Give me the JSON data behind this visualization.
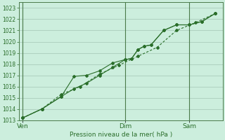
{
  "title": "Pression niveau de la mer( hPa )",
  "bg_color": "#cceedd",
  "grid_color": "#aaccbb",
  "line_color": "#2a6e2a",
  "ylim": [
    1013,
    1023.5
  ],
  "yticks": [
    1013,
    1014,
    1015,
    1016,
    1017,
    1018,
    1019,
    1020,
    1021,
    1022,
    1023
  ],
  "xtick_labels": [
    "Ven",
    "Dim",
    "Sam"
  ],
  "xtick_positions": [
    0.0,
    0.533,
    0.867
  ],
  "vline_positions": [
    0.0,
    0.533,
    0.867
  ],
  "series1_x": [
    0.0,
    0.1,
    0.2,
    0.267,
    0.333,
    0.4,
    0.467,
    0.533,
    0.567,
    0.6,
    0.633,
    0.667,
    0.733,
    0.8,
    0.867,
    0.933,
    1.0
  ],
  "series1_y": [
    1013.2,
    1014.0,
    1015.1,
    1016.9,
    1017.0,
    1017.4,
    1018.1,
    1018.4,
    1018.5,
    1019.3,
    1019.6,
    1019.7,
    1021.0,
    1021.5,
    1021.5,
    1021.8,
    1022.5
  ],
  "series2_x": [
    0.0,
    0.1,
    0.2,
    0.267,
    0.333,
    0.4,
    0.467,
    0.533,
    0.567,
    0.6,
    0.633,
    0.667,
    0.733,
    0.8,
    0.867,
    0.933,
    1.0
  ],
  "series2_y": [
    1013.2,
    1014.0,
    1015.1,
    1015.8,
    1016.3,
    1017.0,
    1017.7,
    1018.4,
    1018.5,
    1019.3,
    1019.6,
    1019.7,
    1021.0,
    1021.5,
    1021.5,
    1021.8,
    1022.5
  ],
  "series3_x": [
    0.0,
    0.1,
    0.2,
    0.3,
    0.4,
    0.5,
    0.6,
    0.7,
    0.8,
    0.9,
    1.0
  ],
  "series3_y": [
    1013.2,
    1014.0,
    1015.3,
    1016.0,
    1017.1,
    1017.9,
    1018.7,
    1019.5,
    1021.0,
    1021.7,
    1022.5
  ],
  "xlim": [
    -0.02,
    1.04
  ]
}
